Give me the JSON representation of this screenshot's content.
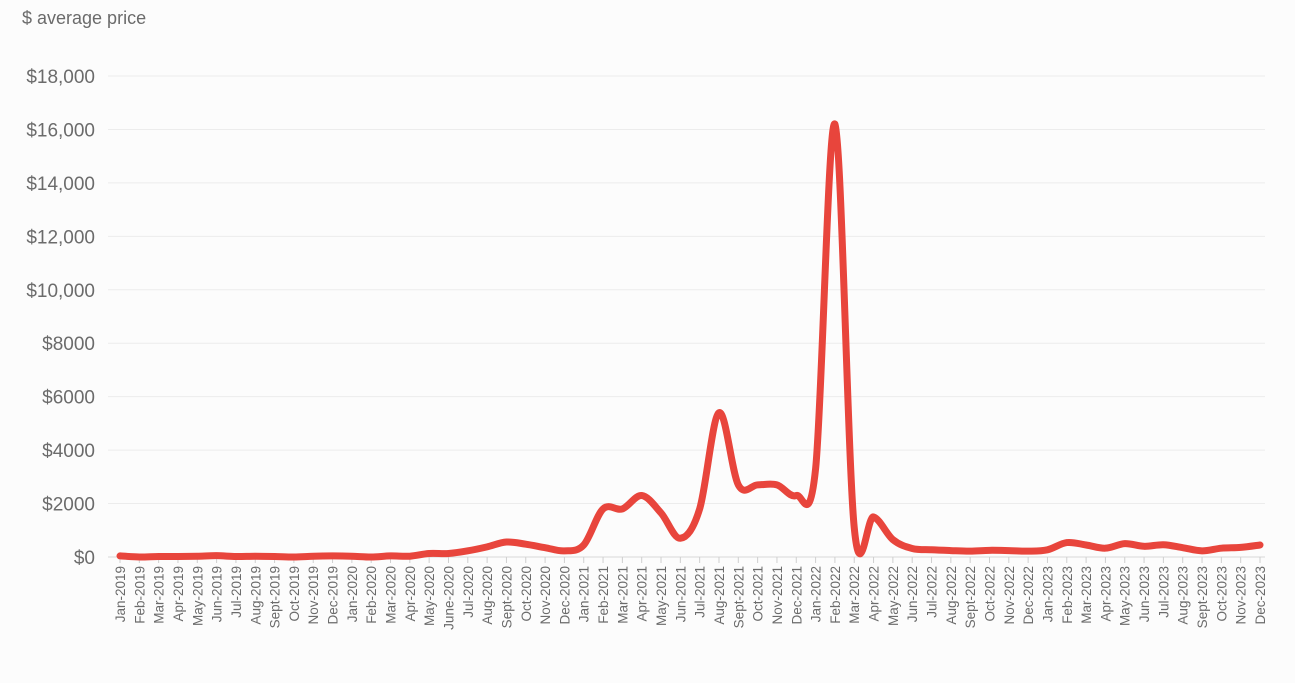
{
  "chart_data": {
    "type": "line",
    "title": "",
    "xlabel": "",
    "ylabel": "$ average price",
    "ylim": [
      0,
      18000
    ],
    "yticks": [
      {
        "value": 0,
        "label": "$0"
      },
      {
        "value": 2000,
        "label": "$2000"
      },
      {
        "value": 4000,
        "label": "$4000"
      },
      {
        "value": 6000,
        "label": "$6000"
      },
      {
        "value": 8000,
        "label": "$8000"
      },
      {
        "value": 10000,
        "label": "$10,000"
      },
      {
        "value": 12000,
        "label": "$12,000"
      },
      {
        "value": 14000,
        "label": "$14,000"
      },
      {
        "value": 16000,
        "label": "$16,000"
      },
      {
        "value": 18000,
        "label": "$18,000"
      }
    ],
    "grid": true,
    "legend": "none",
    "line_color": "#e8453c",
    "categories": [
      "Jan-2019",
      "Feb-2019",
      "Mar-2019",
      "Apr-2019",
      "May-2019",
      "Jun-2019",
      "Jul-2019",
      "Aug-2019",
      "Sept-2019",
      "Oct-2019",
      "Nov-2019",
      "Dec-2019",
      "Jan-2020",
      "Feb-2020",
      "Mar-2020",
      "Apr-2020",
      "May-2020",
      "June-2020",
      "Jul-2020",
      "Aug-2020",
      "Sept-2020",
      "Oct-2020",
      "Nov-2020",
      "Dec-2020",
      "Jan-2021",
      "Feb-2021",
      "Mar-2021",
      "Apr-2021",
      "May-2021",
      "Jun-2021",
      "Jul-2021",
      "Aug-2021",
      "Sept-2021",
      "Oct-2021",
      "Nov-2021",
      "Dec-2021",
      "Jan-2022",
      "Feb-2022",
      "Mar-2022",
      "Apr-2022",
      "May-2022",
      "Jun-2022",
      "Jul-2022",
      "Aug-2022",
      "Sept-2022",
      "Oct-2022",
      "Nov-2022",
      "Dec-2022",
      "Jan-2023",
      "Feb-2023",
      "Mar-2023",
      "Apr-2023",
      "May-2023",
      "Jun-2023",
      "Jul-2023",
      "Aug-2023",
      "Sept-2023",
      "Oct-2023",
      "Nov-2023",
      "Dec-2023"
    ],
    "series": [
      {
        "values": [
          40,
          0,
          20,
          20,
          30,
          50,
          20,
          30,
          20,
          0,
          30,
          40,
          30,
          0,
          40,
          30,
          130,
          130,
          230,
          380,
          560,
          480,
          350,
          230,
          450,
          1800,
          1800,
          2300,
          1650,
          700,
          1800,
          5400,
          2700,
          2700,
          2700,
          2300,
          3300,
          16200,
          1100,
          1500,
          650,
          320,
          270,
          240,
          220,
          250,
          240,
          220,
          270,
          540,
          450,
          330,
          500,
          400,
          460,
          350,
          230,
          330,
          360,
          450
        ]
      }
    ]
  }
}
